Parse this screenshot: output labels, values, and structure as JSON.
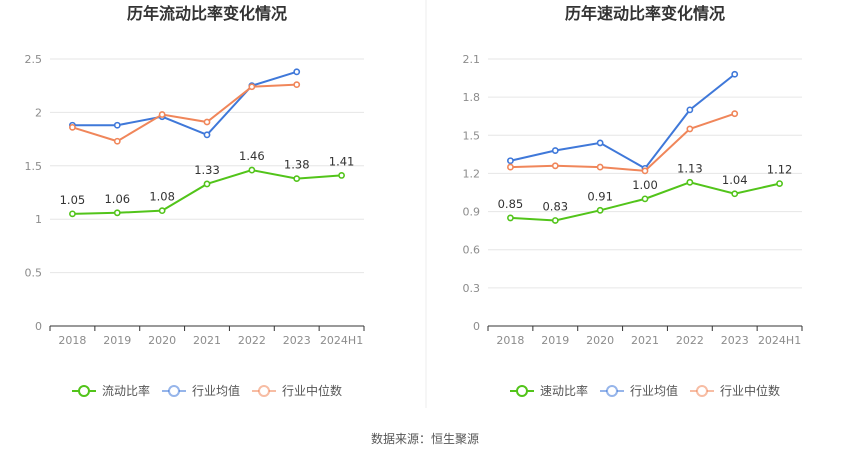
{
  "source_text": "数据来源：恒生聚源",
  "colors": {
    "green": "#52c41a",
    "blue": "#3f78d9",
    "orange": "#f0865a",
    "grid": "#e6e6e6",
    "axis": "#333333",
    "divider": "#eeeeee"
  },
  "chart_data": [
    {
      "type": "line",
      "title": "历年流动比率变化情况",
      "categories": [
        "2018",
        "2019",
        "2020",
        "2021",
        "2022",
        "2023",
        "2024H1"
      ],
      "ylim": [
        0,
        2.5
      ],
      "yticks": [
        "0",
        "0.5",
        "1",
        "1.5",
        "2",
        "2.5"
      ],
      "ytick_values": [
        0,
        0.5,
        1,
        1.5,
        2,
        2.5
      ],
      "grid": true,
      "legend_position": "bottom",
      "series": [
        {
          "name": "流动比率",
          "color_key": "green",
          "values": [
            1.05,
            1.06,
            1.08,
            1.33,
            1.46,
            1.38,
            1.41
          ],
          "labels": [
            "1.05",
            "1.06",
            "1.08",
            "1.33",
            "1.46",
            "1.38",
            "1.41"
          ]
        },
        {
          "name": "行业均值",
          "color_key": "blue",
          "values": [
            1.88,
            1.88,
            1.96,
            1.79,
            2.25,
            2.38,
            null
          ]
        },
        {
          "name": "行业中位数",
          "color_key": "orange",
          "values": [
            1.86,
            1.73,
            1.98,
            1.91,
            2.24,
            2.26,
            null
          ]
        }
      ]
    },
    {
      "type": "line",
      "title": "历年速动比率变化情况",
      "categories": [
        "2018",
        "2019",
        "2020",
        "2021",
        "2022",
        "2023",
        "2024H1"
      ],
      "ylim": [
        0,
        2.1
      ],
      "yticks": [
        "0",
        "0.3",
        "0.6",
        "0.9",
        "1.2",
        "1.5",
        "1.8",
        "2.1"
      ],
      "ytick_values": [
        0,
        0.3,
        0.6,
        0.9,
        1.2,
        1.5,
        1.8,
        2.1
      ],
      "grid": true,
      "legend_position": "bottom",
      "series": [
        {
          "name": "速动比率",
          "color_key": "green",
          "values": [
            0.85,
            0.83,
            0.91,
            1.0,
            1.13,
            1.04,
            1.12
          ],
          "labels": [
            "0.85",
            "0.83",
            "0.91",
            "1.00",
            "1.13",
            "1.04",
            "1.12"
          ]
        },
        {
          "name": "行业均值",
          "color_key": "blue",
          "values": [
            1.3,
            1.38,
            1.44,
            1.24,
            1.7,
            1.98,
            null
          ]
        },
        {
          "name": "行业中位数",
          "color_key": "orange",
          "values": [
            1.25,
            1.26,
            1.25,
            1.22,
            1.55,
            1.67,
            null
          ]
        }
      ]
    }
  ]
}
